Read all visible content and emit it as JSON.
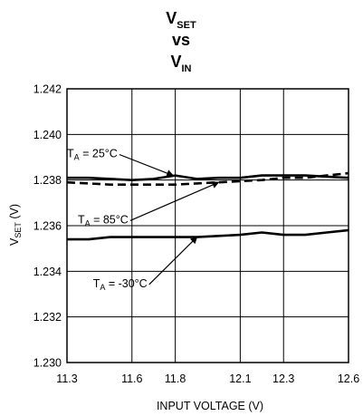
{
  "chart_data": {
    "type": "line",
    "title": {
      "line1_main": "V",
      "line1_sub": "SET",
      "line2": "vs",
      "line3_main": "V",
      "line3_sub": "IN"
    },
    "xlabel": "INPUT VOLTAGE (V)",
    "ylabel": {
      "main": "V",
      "sub": "SET",
      "rest": " (V)"
    },
    "xlim": [
      11.3,
      12.6
    ],
    "ylim": [
      1.23,
      1.242
    ],
    "x_ticks": [
      11.3,
      11.6,
      11.8,
      12.1,
      12.3,
      12.6
    ],
    "x_tick_labels": [
      "11.3",
      "11.6",
      "11.8",
      "12.1",
      "12.3",
      "12.6"
    ],
    "y_ticks": [
      1.23,
      1.232,
      1.234,
      1.236,
      1.238,
      1.24,
      1.242
    ],
    "y_tick_labels": [
      "1.230",
      "1.232",
      "1.234",
      "1.236",
      "1.238",
      "1.240",
      "1.242"
    ],
    "grid": true,
    "series": [
      {
        "style": "solid",
        "x": [
          11.3,
          11.4,
          11.5,
          11.6,
          11.7,
          11.8,
          11.9,
          12.0,
          12.1,
          12.2,
          12.3,
          12.4,
          12.5,
          12.6
        ],
        "y": [
          1.2381,
          1.2381,
          1.23805,
          1.238,
          1.23805,
          1.2382,
          1.23805,
          1.2381,
          1.2381,
          1.2382,
          1.2382,
          1.2382,
          1.23815,
          1.2381
        ]
      },
      {
        "style": "dashed",
        "x": [
          11.3,
          11.4,
          11.5,
          11.6,
          11.7,
          11.8,
          11.9,
          12.0,
          12.1,
          12.2,
          12.3,
          12.4,
          12.5,
          12.6
        ],
        "y": [
          1.2379,
          1.23785,
          1.2378,
          1.2378,
          1.2378,
          1.2378,
          1.23785,
          1.2379,
          1.23795,
          1.238,
          1.2381,
          1.2381,
          1.2382,
          1.2383
        ]
      },
      {
        "style": "solid",
        "x": [
          11.3,
          11.4,
          11.5,
          11.6,
          11.7,
          11.8,
          11.9,
          12.0,
          12.1,
          12.2,
          12.3,
          12.4,
          12.5,
          12.6
        ],
        "y": [
          1.2354,
          1.2354,
          1.2355,
          1.2355,
          1.2355,
          1.2355,
          1.2355,
          1.23555,
          1.2356,
          1.2357,
          1.2356,
          1.2356,
          1.2357,
          1.2358
        ]
      }
    ],
    "annotations": [
      {
        "pre": "T",
        "sub": "A",
        "post": " = 25°C",
        "text_at": [
          11.3,
          1.239
        ],
        "arrow_to": [
          11.79,
          1.2382
        ]
      },
      {
        "pre": "T",
        "sub": "A",
        "post": " = 85°C",
        "text_at": [
          11.35,
          1.2361
        ],
        "arrow_to": [
          12.0,
          1.2379
        ]
      },
      {
        "pre": "T",
        "sub": "A",
        "post": " = -30°C",
        "text_at": [
          11.42,
          1.2333
        ],
        "arrow_to": [
          11.9,
          1.2355
        ]
      }
    ]
  }
}
